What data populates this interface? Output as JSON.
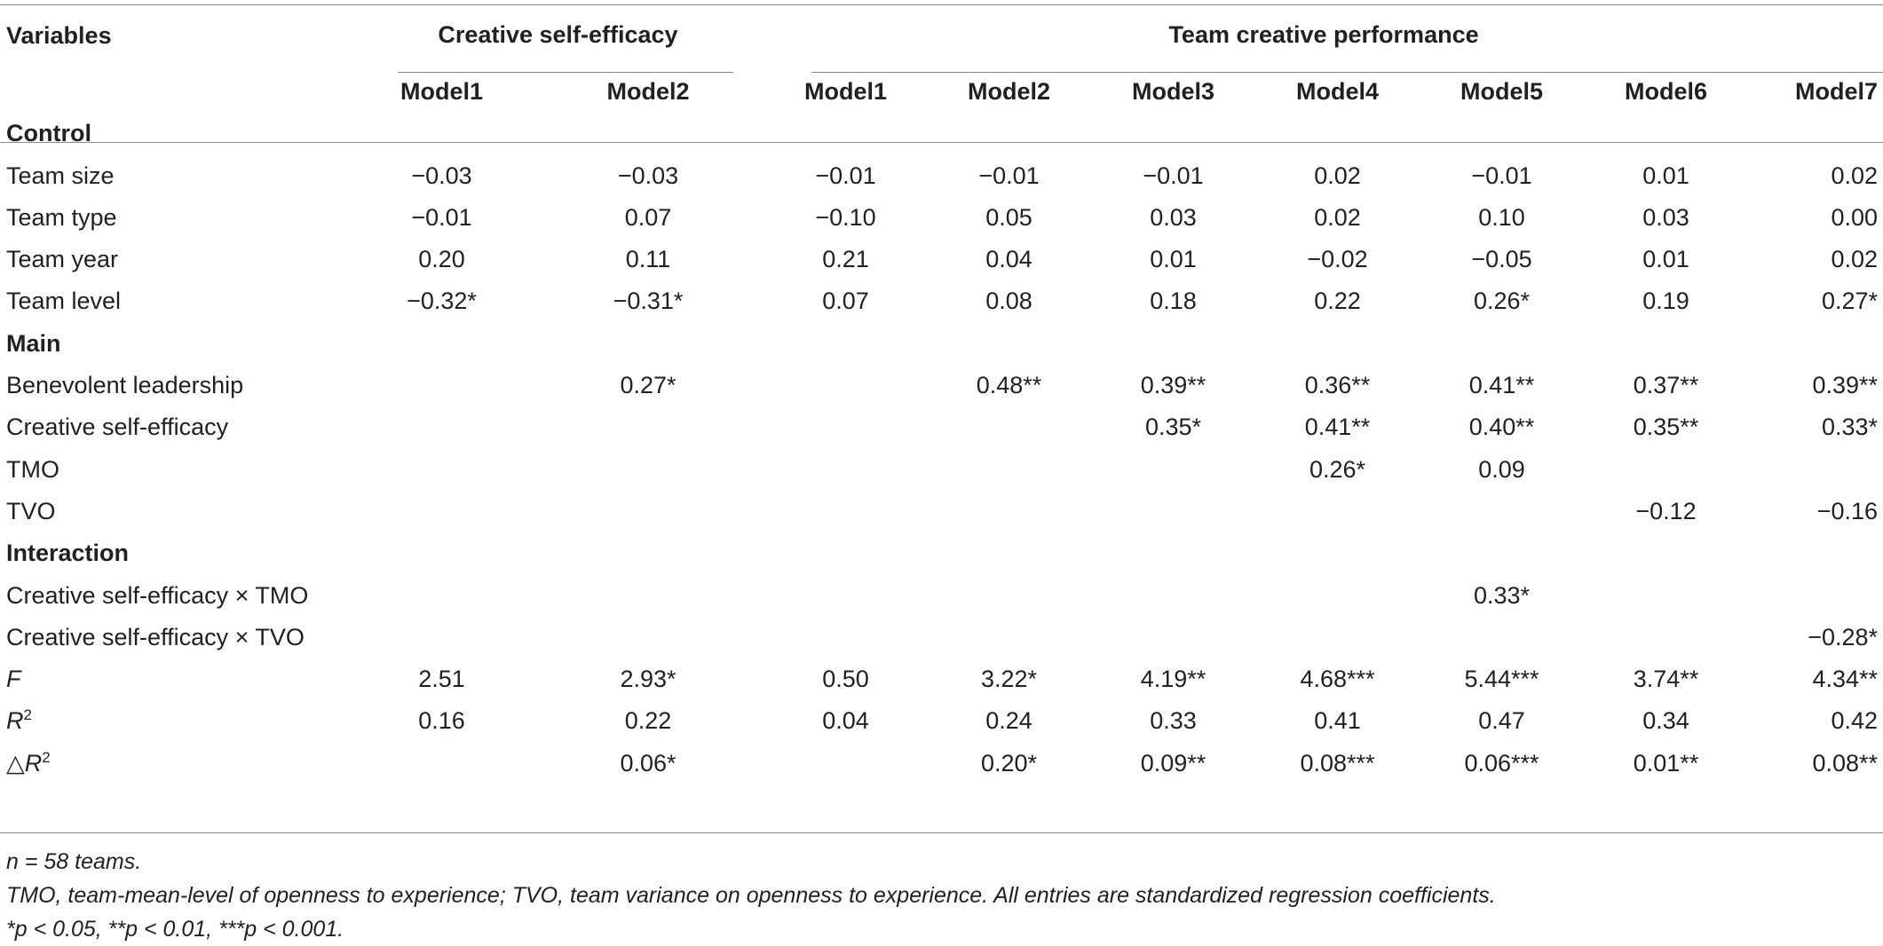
{
  "header": {
    "variables_label": "Variables",
    "group_cse": "Creative self-efficacy",
    "group_tcp": "Team creative performance",
    "models": [
      "Model1",
      "Model2",
      "Model1",
      "Model2",
      "Model3",
      "Model4",
      "Model5",
      "Model6",
      "Model7"
    ]
  },
  "sections": {
    "control": "Control",
    "main": "Main",
    "interaction": "Interaction"
  },
  "rows": {
    "team_size": {
      "label": "Team size",
      "v": [
        "−0.03",
        "−0.03",
        "−0.01",
        "−0.01",
        "−0.01",
        "0.02",
        "−0.01",
        "0.01",
        "0.02"
      ]
    },
    "team_type": {
      "label": "Team type",
      "v": [
        "−0.01",
        "0.07",
        "−0.10",
        "0.05",
        "0.03",
        "0.02",
        "0.10",
        "0.03",
        "0.00"
      ]
    },
    "team_year": {
      "label": "Team year",
      "v": [
        "0.20",
        "0.11",
        "0.21",
        "0.04",
        "0.01",
        "−0.02",
        "−0.05",
        "0.01",
        "0.02"
      ]
    },
    "team_level": {
      "label": "Team level",
      "v": [
        "−0.32*",
        "−0.31*",
        "0.07",
        "0.08",
        "0.18",
        "0.22",
        "0.26*",
        "0.19",
        "0.27*"
      ]
    },
    "benevolent": {
      "label": "Benevolent leadership",
      "v": [
        "",
        "0.27*",
        "",
        "0.48**",
        "0.39**",
        "0.36**",
        "0.41**",
        "0.37**",
        "0.39**"
      ]
    },
    "cse": {
      "label": "Creative self-efficacy",
      "v": [
        "",
        "",
        "",
        "",
        "0.35*",
        "0.41**",
        "0.40**",
        "0.35**",
        "0.33*"
      ]
    },
    "tmo": {
      "label": "TMO",
      "v": [
        "",
        "",
        "",
        "",
        "",
        "0.26*",
        "0.09",
        "",
        ""
      ]
    },
    "tvo": {
      "label": "TVO",
      "v": [
        "",
        "",
        "",
        "",
        "",
        "",
        "",
        "−0.12",
        "−0.16"
      ]
    },
    "cse_tmo": {
      "label": "Creative self-efficacy × TMO",
      "v": [
        "",
        "",
        "",
        "",
        "",
        "",
        "0.33*",
        "",
        ""
      ]
    },
    "cse_tvo": {
      "label": "Creative self-efficacy × TVO",
      "v": [
        "",
        "",
        "",
        "",
        "",
        "",
        "",
        "",
        "−0.28*"
      ]
    },
    "f": {
      "label": "F",
      "v": [
        "2.51",
        "2.93*",
        "0.50",
        "3.22*",
        "4.19**",
        "4.68***",
        "5.44***",
        "3.74**",
        "4.34**"
      ]
    },
    "r2": {
      "label": "R",
      "sup": "2",
      "v": [
        "0.16",
        "0.22",
        "0.04",
        "0.24",
        "0.33",
        "0.41",
        "0.47",
        "0.34",
        "0.42"
      ]
    },
    "dr2": {
      "label": "△R",
      "sup": "2",
      "v": [
        "",
        "0.06*",
        "",
        "0.20*",
        "0.09**",
        "0.08***",
        "0.06***",
        "0.01**",
        "0.08**"
      ]
    }
  },
  "notes": {
    "n": "n = 58 teams.",
    "abbrev": "TMO, team-mean-level of openness to experience; TVO, team variance on openness to experience. All entries are standardized regression coefficients.",
    "sig": "*p < 0.05, **p < 0.01, ***p < 0.001."
  }
}
